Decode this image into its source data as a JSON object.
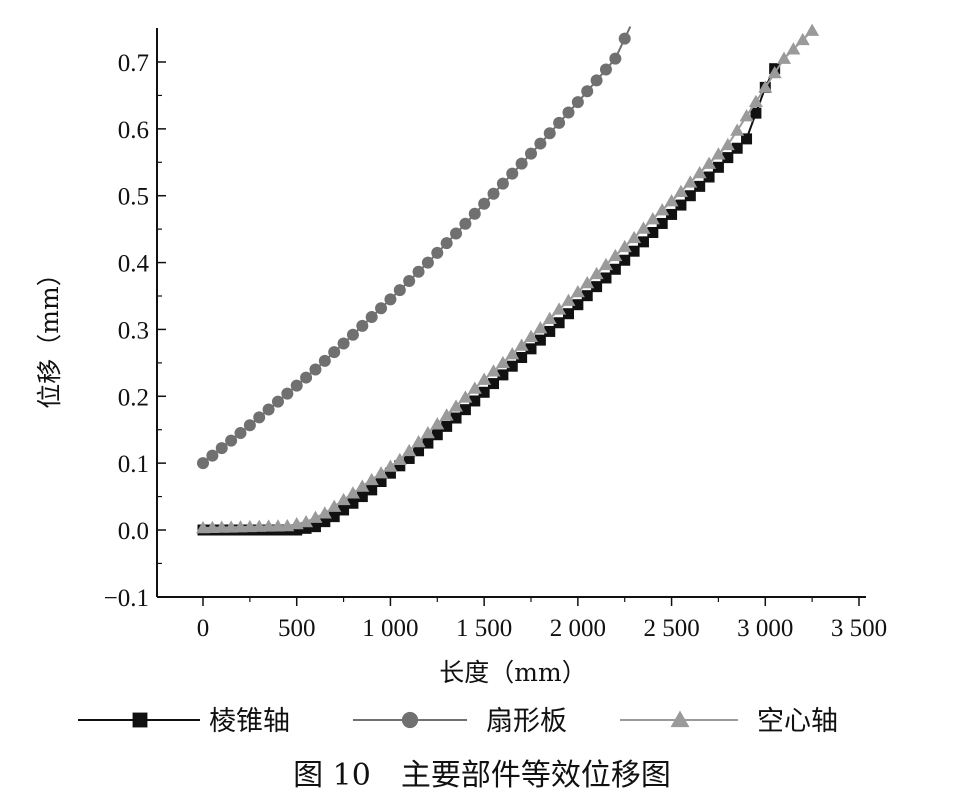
{
  "chart_data": {
    "type": "line",
    "title": "",
    "xlabel": "长度（mm）",
    "ylabel": "位移（mm）",
    "xlim": [
      -250,
      3500
    ],
    "ylim": [
      -0.1,
      0.75
    ],
    "xticks": [
      0,
      500,
      1000,
      1500,
      2000,
      2500,
      3000,
      3500
    ],
    "xtick_labels": [
      "0",
      "500",
      "1 000",
      "1 500",
      "2 000",
      "2 500",
      "3 000",
      "3 500"
    ],
    "yticks": [
      -0.1,
      0.0,
      0.1,
      0.2,
      0.3,
      0.4,
      0.5,
      0.6,
      0.7
    ],
    "ytick_labels": [
      "−0.1",
      "0.0",
      "0.1",
      "0.2",
      "0.3",
      "0.4",
      "0.5",
      "0.6",
      "0.7"
    ],
    "grid": false,
    "legend_position": "bottom",
    "series": [
      {
        "name": "棱锥轴",
        "color": "#111111",
        "marker": "square",
        "x": [
          0,
          500,
          600,
          700,
          800,
          900,
          1000,
          1100,
          1200,
          1300,
          1400,
          1500,
          1600,
          1700,
          1800,
          1900,
          2000,
          2100,
          2200,
          2300,
          2400,
          2500,
          2600,
          2700,
          2800,
          2900,
          3000,
          3050
        ],
        "y": [
          0.0,
          0.0,
          0.005,
          0.02,
          0.04,
          0.06,
          0.085,
          0.107,
          0.13,
          0.155,
          0.18,
          0.206,
          0.232,
          0.258,
          0.284,
          0.31,
          0.337,
          0.364,
          0.39,
          0.417,
          0.445,
          0.472,
          0.5,
          0.528,
          0.557,
          0.585,
          0.662,
          0.69
        ]
      },
      {
        "name": "扇形板",
        "color": "#707070",
        "marker": "circle",
        "x": [
          0,
          200,
          400,
          600,
          800,
          1000,
          1200,
          1400,
          1600,
          1800,
          2000,
          2200,
          2280
        ],
        "y": [
          0.1,
          0.145,
          0.192,
          0.24,
          0.292,
          0.345,
          0.4,
          0.458,
          0.518,
          0.578,
          0.64,
          0.705,
          0.753
        ]
      },
      {
        "name": "空心轴",
        "color": "#9a9a9a",
        "marker": "triangle",
        "x": [
          0,
          450,
          550,
          650,
          750,
          850,
          950,
          1050,
          1500,
          1600,
          1700,
          1800,
          1900,
          2000,
          2100,
          2200,
          2300,
          2400,
          2500,
          2600,
          2700,
          2800,
          3100,
          3250
        ],
        "y": [
          0.003,
          0.006,
          0.012,
          0.025,
          0.045,
          0.065,
          0.085,
          0.105,
          0.225,
          0.25,
          0.276,
          0.302,
          0.33,
          0.356,
          0.383,
          0.41,
          0.437,
          0.465,
          0.492,
          0.52,
          0.548,
          0.576,
          0.705,
          0.747
        ]
      }
    ]
  },
  "caption": "图 10　主要部件等效位移图"
}
